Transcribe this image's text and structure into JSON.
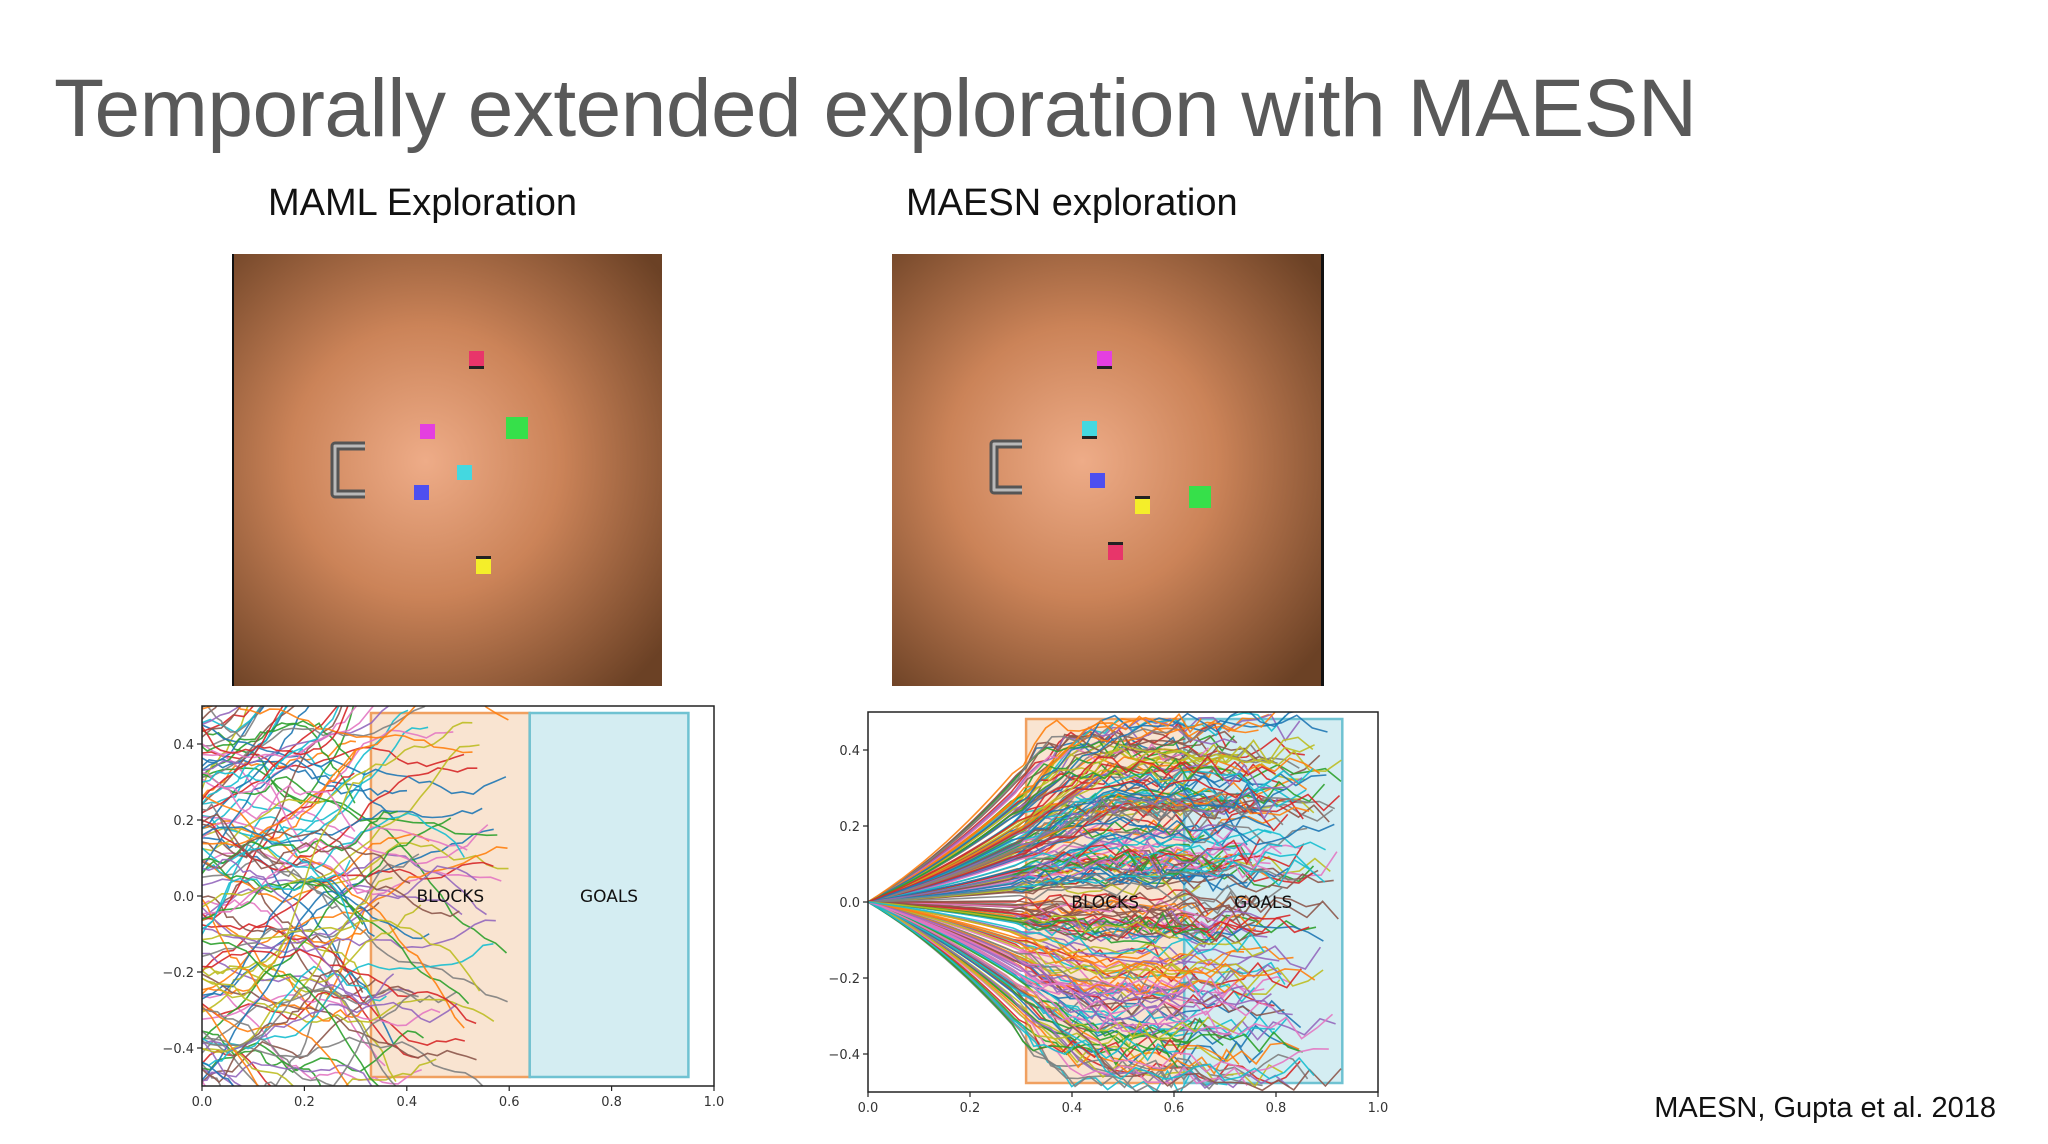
{
  "slide": {
    "title": "Temporally extended exploration with MAESN",
    "citation": "MAESN, Gupta et al. 2018"
  },
  "colors": {
    "title": "#595959",
    "table_center": "#e9a883",
    "table_edge": "#6b4125",
    "blocks_fill": "#f3c9a3",
    "blocks_edge": "#f0a060",
    "goals_fill": "#a9dbe6",
    "goals_edge": "#6fc2d2"
  },
  "panels": [
    {
      "id": "maml",
      "title": "MAML Exploration",
      "scene_objects": [
        "magenta-block",
        "red-block",
        "green-goal",
        "cyan-block",
        "blue-block",
        "yellow-block",
        "gripper"
      ],
      "chart_data": {
        "type": "line",
        "title": "",
        "xlabel": "",
        "ylabel": "",
        "xlim": [
          0.0,
          1.0
        ],
        "ylim": [
          -0.5,
          0.5
        ],
        "xticks": [
          "0.0",
          "0.2",
          "0.4",
          "0.6",
          "0.8",
          "1.0"
        ],
        "yticks": [
          "0.4",
          "0.2",
          "0.0",
          "−0.2",
          "−0.4"
        ],
        "regions": [
          {
            "label": "BLOCKS",
            "x0": 0.33,
            "x1": 0.64
          },
          {
            "label": "GOALS",
            "x0": 0.64,
            "x1": 0.95
          }
        ],
        "trajectories": {
          "count": 120,
          "start_x": 0.0,
          "start_y_range": [
            -0.5,
            0.5
          ],
          "end_x_range": [
            0.25,
            0.6
          ]
        }
      }
    },
    {
      "id": "maesn",
      "title": "MAESN exploration",
      "scene_objects": [
        "magenta-block",
        "cyan-block",
        "blue-block",
        "yellow-block",
        "green-goal",
        "red-block",
        "gripper"
      ],
      "chart_data": {
        "type": "line",
        "title": "",
        "xlabel": "",
        "ylabel": "",
        "xlim": [
          0.0,
          1.0
        ],
        "ylim": [
          -0.5,
          0.5
        ],
        "xticks": [
          "0.0",
          "0.2",
          "0.4",
          "0.6",
          "0.8",
          "1.0"
        ],
        "yticks": [
          "0.4",
          "0.2",
          "0.0",
          "−0.2",
          "−0.4"
        ],
        "regions": [
          {
            "label": "BLOCKS",
            "x0": 0.31,
            "x1": 0.62
          },
          {
            "label": "GOALS",
            "x0": 0.62,
            "x1": 0.93
          }
        ],
        "trajectories": {
          "count": 220,
          "start_x": 0.0,
          "start_y": 0.0,
          "end_x_range": [
            0.6,
            0.93
          ],
          "end_y_range": [
            -0.5,
            0.5
          ]
        }
      }
    }
  ]
}
